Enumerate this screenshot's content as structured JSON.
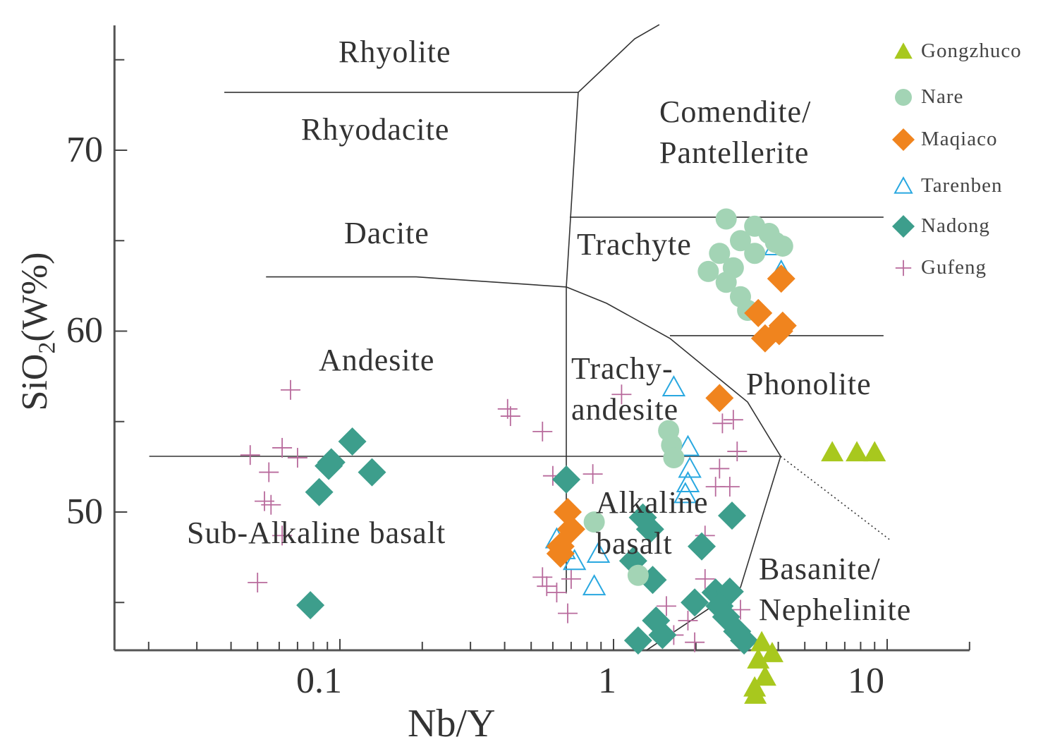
{
  "chart_data": {
    "type": "scatter",
    "xlabel": "Nb/Y",
    "ylabel_main": "SiO",
    "ylabel_sub": "2",
    "ylabel_tail": "(W%)",
    "xscale": "log",
    "xlim": [
      0.015,
      20
    ],
    "ylim": [
      42.36,
      76.9
    ],
    "x_tick_labels": [
      "0.1",
      "1",
      "10"
    ],
    "y_tick_labels": [
      "50",
      "60",
      "70"
    ],
    "grid": false,
    "legend_position": "top-right",
    "region_labels": {
      "rhyolite": "Rhyolite",
      "rhyodacite": "Rhyodacite",
      "comendite": [
        "Comendite/",
        "Pantellerite"
      ],
      "dacite": "Dacite",
      "trachyte": "Trachyte",
      "andesite": "Andesite",
      "trachyandesite": [
        "Trachy-",
        "andesite"
      ],
      "phonolite": "Phonolite",
      "subalkaline": "Sub-Alkaline basalt",
      "alkaline": [
        "Alkaline",
        "basalt"
      ],
      "basanite": [
        "Basanite/",
        "Nephelinite"
      ]
    },
    "boundaries": [
      {
        "points": [
          [
            0.0378,
            73.2
          ],
          [
            0.743,
            73.2
          ]
        ],
        "style": "solid"
      },
      {
        "points": [
          [
            0.743,
            73.2
          ],
          [
            1.195,
            76.16
          ],
          [
            1.47,
            76.94
          ]
        ],
        "style": "solid"
      },
      {
        "points": [
          [
            0.743,
            73.2
          ],
          [
            0.672,
            62.44
          ],
          [
            0.672,
            53.08
          ],
          [
            0.672,
            45.5
          ]
        ],
        "style": "solid"
      },
      {
        "points": [
          [
            0.692,
            66.3
          ],
          [
            9.7,
            66.3
          ]
        ],
        "style": "solid"
      },
      {
        "points": [
          [
            0.0537,
            63.0
          ],
          [
            0.19,
            63.0
          ],
          [
            0.672,
            62.44
          ]
        ],
        "style": "solid"
      },
      {
        "points": [
          [
            0.672,
            62.44
          ],
          [
            0.943,
            61.54
          ],
          [
            1.607,
            59.6
          ],
          [
            3.09,
            56.08
          ],
          [
            4.08,
            53.08
          ]
        ],
        "style": "solid"
      },
      {
        "points": [
          [
            1.607,
            59.75
          ],
          [
            9.7,
            59.75
          ]
        ],
        "style": "solid"
      },
      {
        "points": [
          [
            0.0201,
            53.08
          ],
          [
            4.08,
            53.08
          ]
        ],
        "style": "solid"
      },
      {
        "points": [
          [
            4.08,
            53.08
          ],
          [
            2.91,
            45.83
          ]
        ],
        "style": "solid"
      },
      {
        "points": [
          [
            1.32,
            42.36
          ],
          [
            2.91,
            45.83
          ]
        ],
        "style": "solid"
      },
      {
        "points": [
          [
            4.08,
            53.08
          ],
          [
            10.2,
            48.48
          ]
        ],
        "style": "dotted"
      }
    ],
    "series": [
      {
        "name": "Gongzhuco",
        "marker": "triangle-filled",
        "color": "#a8c81e",
        "points": [
          [
            6.3,
            53.3
          ],
          [
            7.75,
            53.3
          ],
          [
            9.0,
            53.3
          ],
          [
            3.48,
            42.8
          ],
          [
            3.8,
            42.2
          ],
          [
            3.38,
            41.85
          ],
          [
            3.58,
            40.9
          ],
          [
            3.28,
            40.3
          ],
          [
            3.3,
            39.9
          ]
        ]
      },
      {
        "name": "Nare",
        "marker": "circle",
        "color": "#a3d4b5",
        "points": [
          [
            2.58,
            66.2
          ],
          [
            3.28,
            65.8
          ],
          [
            3.91,
            64.9
          ],
          [
            4.15,
            64.7
          ],
          [
            2.91,
            65.0
          ],
          [
            2.44,
            64.3
          ],
          [
            2.22,
            63.3
          ],
          [
            2.74,
            63.5
          ],
          [
            3.28,
            64.3
          ],
          [
            2.58,
            62.7
          ],
          [
            2.91,
            61.9
          ],
          [
            3.09,
            61.15
          ],
          [
            3.7,
            65.4
          ],
          [
            1.59,
            54.5
          ],
          [
            1.63,
            53.7
          ],
          [
            1.66,
            53.0
          ],
          [
            0.85,
            49.45
          ],
          [
            1.23,
            46.5
          ]
        ]
      },
      {
        "name": "Maqiaco",
        "marker": "diamond",
        "color": "#f0841e",
        "points": [
          [
            3.38,
            61.0
          ],
          [
            3.58,
            59.6
          ],
          [
            4.03,
            60.0
          ],
          [
            4.15,
            60.3
          ],
          [
            4.1,
            62.9
          ],
          [
            2.44,
            56.3
          ],
          [
            0.68,
            50.0
          ],
          [
            0.7,
            49.05
          ],
          [
            0.64,
            48.1
          ],
          [
            0.64,
            47.7
          ]
        ]
      },
      {
        "name": "Tarenben",
        "marker": "triangle-open",
        "color": "#29a8e0",
        "points": [
          [
            3.91,
            64.7
          ],
          [
            4.1,
            63.3
          ],
          [
            1.66,
            56.9
          ],
          [
            1.87,
            53.6
          ],
          [
            1.9,
            52.4
          ],
          [
            1.87,
            51.6
          ],
          [
            1.83,
            51.0
          ],
          [
            0.62,
            48.5
          ],
          [
            0.66,
            47.9
          ],
          [
            0.72,
            47.3
          ],
          [
            0.88,
            47.7
          ],
          [
            0.85,
            45.9
          ]
        ]
      },
      {
        "name": "Nadong",
        "marker": "diamond",
        "color": "#3d9e8c",
        "points": [
          [
            0.111,
            53.9
          ],
          [
            0.093,
            52.75
          ],
          [
            0.091,
            52.55
          ],
          [
            0.131,
            52.2
          ],
          [
            0.084,
            51.1
          ],
          [
            0.078,
            44.85
          ],
          [
            0.672,
            51.8
          ],
          [
            1.28,
            49.7
          ],
          [
            1.36,
            49.05
          ],
          [
            2.71,
            49.8
          ],
          [
            2.1,
            48.1
          ],
          [
            1.18,
            47.3
          ],
          [
            1.39,
            46.25
          ],
          [
            1.98,
            45.0
          ],
          [
            2.36,
            45.55
          ],
          [
            2.66,
            45.6
          ],
          [
            2.44,
            44.8
          ],
          [
            2.58,
            44.2
          ],
          [
            2.83,
            43.4
          ],
          [
            3.0,
            42.9
          ],
          [
            1.43,
            44.0
          ],
          [
            1.51,
            43.2
          ],
          [
            1.23,
            42.9
          ]
        ]
      },
      {
        "name": "Gufeng",
        "marker": "cross",
        "color": "#b86a9c",
        "points": [
          [
            0.066,
            56.75
          ],
          [
            0.047,
            53.15
          ],
          [
            0.0615,
            53.55
          ],
          [
            0.07,
            53.0
          ],
          [
            0.055,
            52.2
          ],
          [
            0.053,
            50.6
          ],
          [
            0.056,
            50.4
          ],
          [
            0.0615,
            48.7
          ],
          [
            0.05,
            46.1
          ],
          [
            0.41,
            55.7
          ],
          [
            0.42,
            55.3
          ],
          [
            0.55,
            54.45
          ],
          [
            0.6,
            52.0
          ],
          [
            0.84,
            52.1
          ],
          [
            0.55,
            46.4
          ],
          [
            0.57,
            45.9
          ],
          [
            0.62,
            45.55
          ],
          [
            0.68,
            44.4
          ],
          [
            0.7,
            46.3
          ],
          [
            1.07,
            56.5
          ],
          [
            2.5,
            54.9
          ],
          [
            2.74,
            55.1
          ],
          [
            2.83,
            53.35
          ],
          [
            2.44,
            52.4
          ],
          [
            2.36,
            51.4
          ],
          [
            2.66,
            51.4
          ],
          [
            2.16,
            48.7
          ],
          [
            2.16,
            46.3
          ],
          [
            1.56,
            44.8
          ],
          [
            1.87,
            44.0
          ],
          [
            1.66,
            43.2
          ],
          [
            1.98,
            42.8
          ],
          [
            2.91,
            44.6
          ]
        ]
      }
    ]
  }
}
